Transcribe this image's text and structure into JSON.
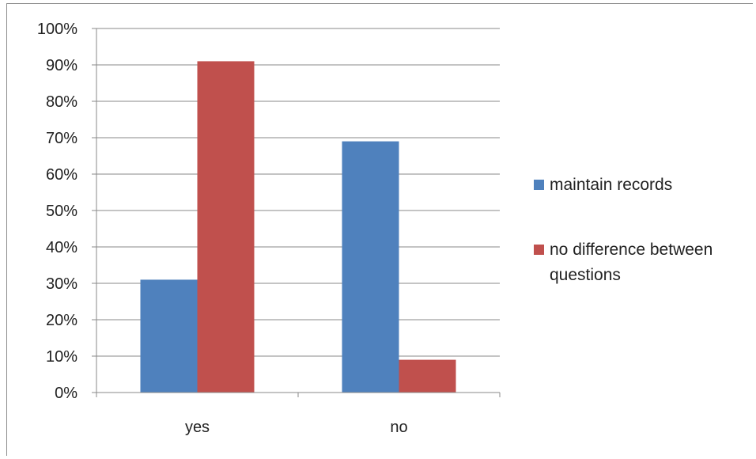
{
  "chart_data": {
    "type": "bar",
    "categories": [
      "yes",
      "no"
    ],
    "series": [
      {
        "name": "maintain records",
        "values": [
          31,
          69
        ],
        "color": "#4f81bd"
      },
      {
        "name": "no difference between questions",
        "values": [
          91,
          9
        ],
        "color": "#c0504d"
      }
    ],
    "ylim": [
      0,
      100
    ],
    "yticks": [
      "0%",
      "10%",
      "20%",
      "30%",
      "40%",
      "50%",
      "60%",
      "70%",
      "80%",
      "90%",
      "100%"
    ],
    "grid": true,
    "legend_position": "right"
  }
}
